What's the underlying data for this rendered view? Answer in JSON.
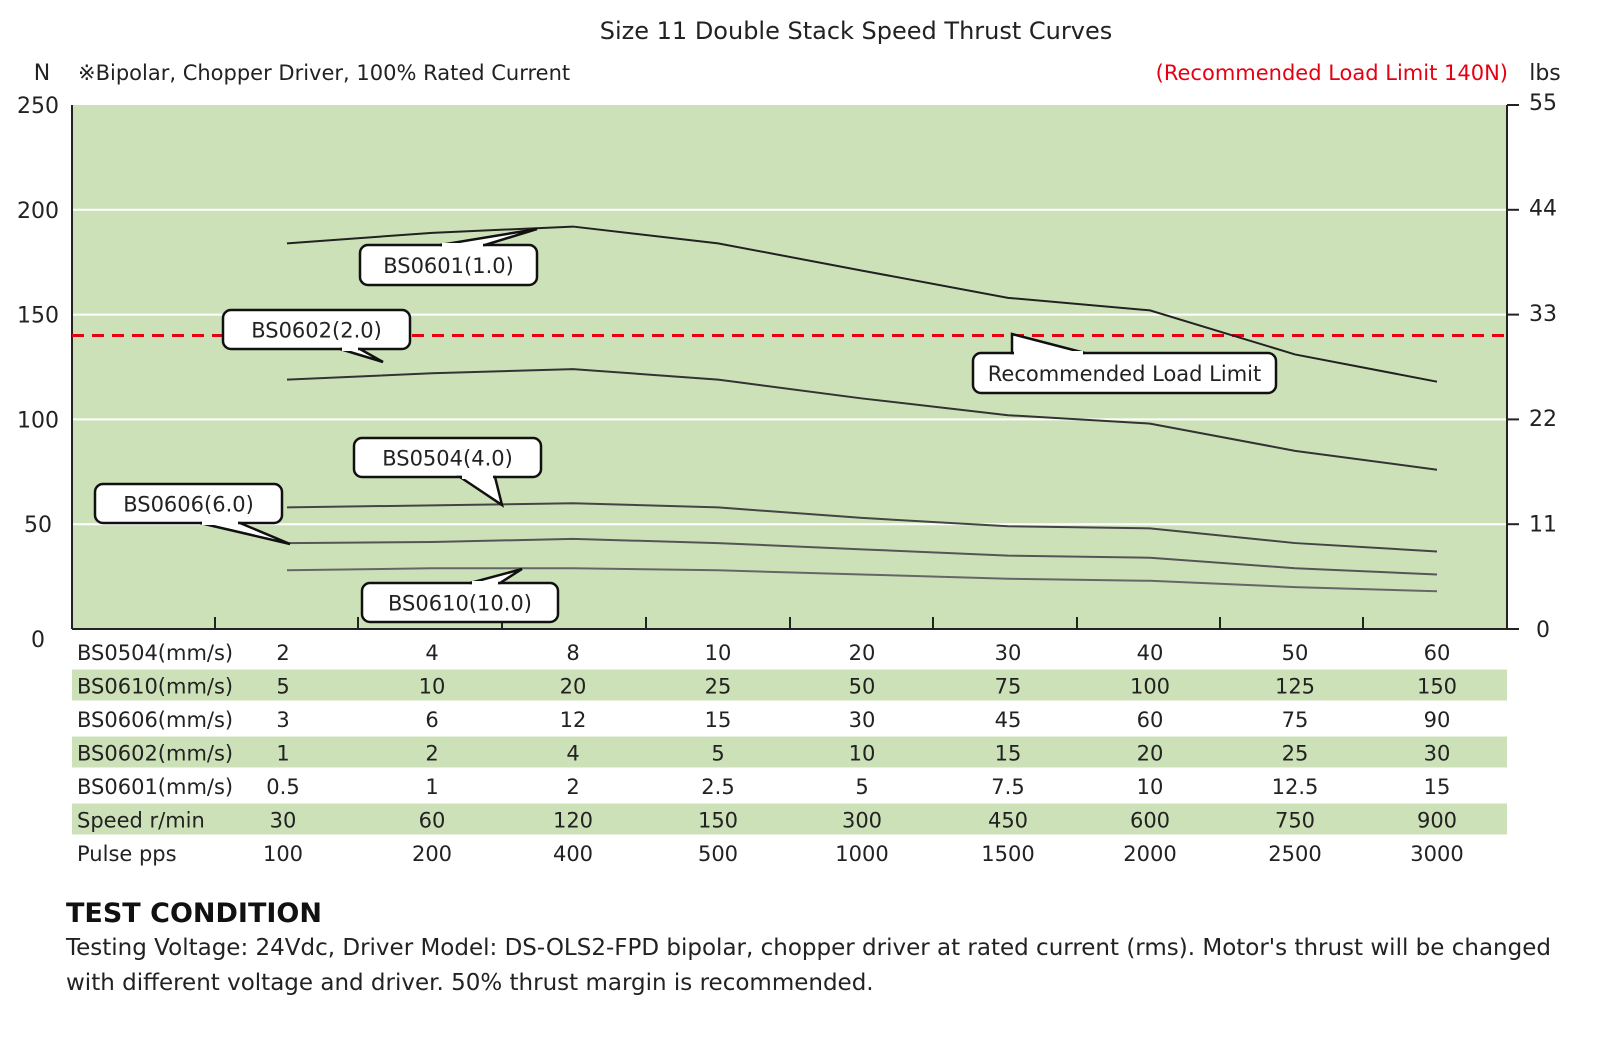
{
  "chart_data": {
    "type": "line",
    "title": "Size 11 Double Stack Speed Thrust Curves",
    "subtitle": "※Bipolar, Chopper Driver, 100% Rated Current",
    "ylabel": "N",
    "ylabel_right": "lbs",
    "ylim": [
      0,
      250
    ],
    "yticks": [
      0,
      50,
      100,
      150,
      200,
      250
    ],
    "ylim_right": [
      0,
      55
    ],
    "yticks_right": [
      0,
      11,
      22,
      33,
      44,
      55
    ],
    "grid": true,
    "background_color": "#cde1b9",
    "x_points": [
      "30",
      "60",
      "120",
      "150",
      "300",
      "450",
      "600",
      "750",
      "900"
    ],
    "series": [
      {
        "name": "BS0601(1.0)",
        "values": [
          184,
          189,
          192,
          184,
          171,
          158,
          152,
          131,
          118
        ],
        "color": "#222222"
      },
      {
        "name": "BS0602(2.0)",
        "values": [
          119,
          122,
          124,
          119,
          110,
          102,
          98,
          85,
          76
        ],
        "color": "#333333"
      },
      {
        "name": "BS0504(4.0)",
        "values": [
          58,
          59,
          60,
          58,
          53,
          49,
          48,
          41,
          37
        ],
        "color": "#444444"
      },
      {
        "name": "BS0606(6.0)",
        "values": [
          41,
          41.5,
          43,
          41,
          38,
          35,
          34,
          29,
          26
        ],
        "color": "#555555"
      },
      {
        "name": "BS0610(10.0)",
        "values": [
          28,
          29,
          29,
          28,
          26,
          24,
          23,
          20,
          18
        ],
        "color": "#666666"
      }
    ],
    "load_limit": {
      "value": 140,
      "label": "Recommended Load Limit",
      "note": "(Recommended Load Limit 140N)",
      "color": "#e60012"
    },
    "table": [
      {
        "label": "BS0504(mm/s)",
        "values": [
          "2",
          "4",
          "8",
          "10",
          "20",
          "30",
          "40",
          "50",
          "60"
        ]
      },
      {
        "label": "BS0610(mm/s)",
        "values": [
          "5",
          "10",
          "20",
          "25",
          "50",
          "75",
          "100",
          "125",
          "150"
        ]
      },
      {
        "label": "BS0606(mm/s)",
        "values": [
          "3",
          "6",
          "12",
          "15",
          "30",
          "45",
          "60",
          "75",
          "90"
        ]
      },
      {
        "label": "BS0602(mm/s)",
        "values": [
          "1",
          "2",
          "4",
          "5",
          "10",
          "15",
          "20",
          "25",
          "30"
        ]
      },
      {
        "label": "BS0601(mm/s)",
        "values": [
          "0.5",
          "1",
          "2",
          "2.5",
          "5",
          "7.5",
          "10",
          "12.5",
          "15"
        ]
      },
      {
        "label": "Speed r/min",
        "values": [
          "30",
          "60",
          "120",
          "150",
          "300",
          "450",
          "600",
          "750",
          "900"
        ]
      },
      {
        "label": "Pulse  pps",
        "values": [
          "100",
          "200",
          "400",
          "500",
          "1000",
          "1500",
          "2000",
          "2500",
          "3000"
        ]
      }
    ]
  },
  "test_condition": {
    "heading": "TEST CONDITION",
    "text": "Testing Voltage: 24Vdc, Driver Model: DS-OLS2-FPD bipolar, chopper driver at rated current (rms). Motor's thrust will be changed with different voltage and driver. 50% thrust margin is recommended."
  }
}
